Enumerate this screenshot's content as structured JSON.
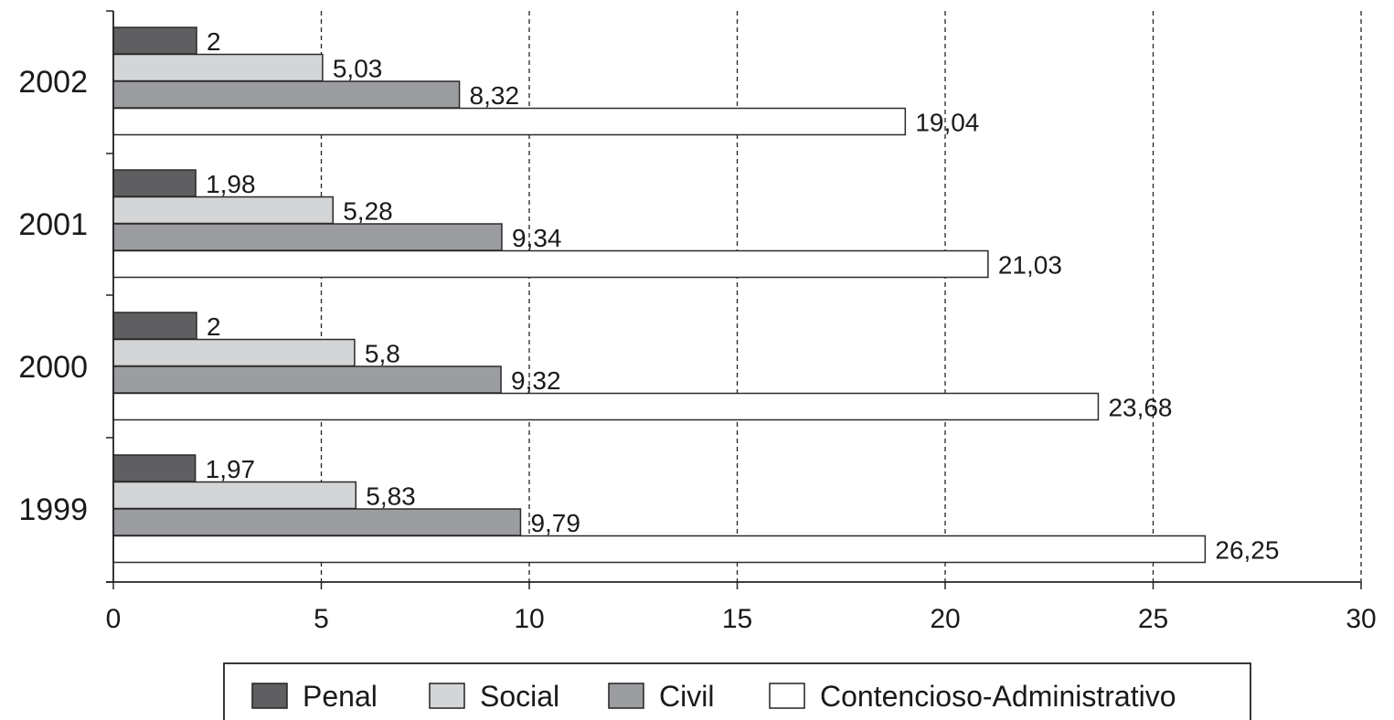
{
  "chart_data": {
    "type": "bar",
    "orientation": "horizontal",
    "categories": [
      "2002",
      "2001",
      "2000",
      "1999"
    ],
    "series": [
      {
        "name": "Penal",
        "color": "#5f5f62",
        "values": [
          2,
          1.98,
          2,
          1.97
        ],
        "labels": [
          "2",
          "1,98",
          "2",
          "1,97"
        ]
      },
      {
        "name": "Social",
        "color": "#d4d5d7",
        "values": [
          5.03,
          5.28,
          5.8,
          5.83
        ],
        "labels": [
          "5,03",
          "5,28",
          "5,8",
          "5,83"
        ]
      },
      {
        "name": "Civil",
        "color": "#9c9da0",
        "values": [
          8.32,
          9.34,
          9.32,
          9.79
        ],
        "labels": [
          "8,32",
          "9,34",
          "9,32",
          "9,79"
        ]
      },
      {
        "name": "Contencioso-Administrativo",
        "color": "#ffffff",
        "values": [
          19.04,
          21.03,
          23.68,
          26.25
        ],
        "labels": [
          "19,04",
          "21,03",
          "23,68",
          "26,25"
        ]
      }
    ],
    "xlim": [
      0,
      30
    ],
    "xticks": [
      "0",
      "5",
      "10",
      "15",
      "20",
      "25",
      "30"
    ],
    "gridlines": "vertical-dashed",
    "legend_position": "bottom",
    "title": "",
    "xlabel": "",
    "ylabel": ""
  }
}
